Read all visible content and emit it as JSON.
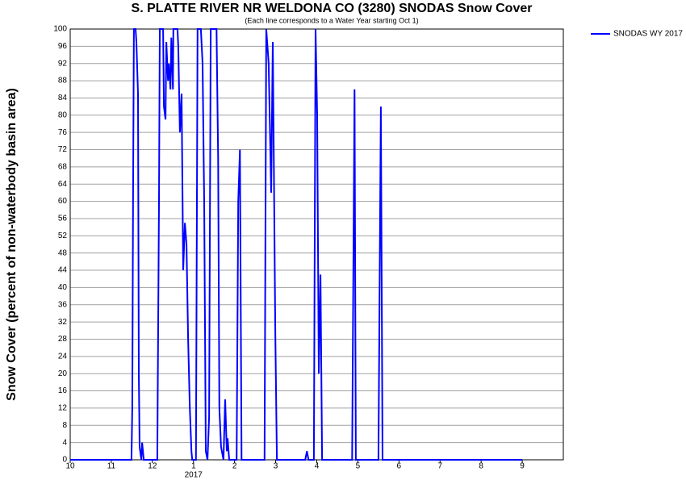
{
  "chart_data": {
    "type": "line",
    "title": "S. PLATTE RIVER NR WELDONA CO (3280) SNODAS Snow Cover",
    "subtitle": "(Each line corresponds to a Water Year starting Oct 1)",
    "y_label": "Snow Cover (percent of non-waterbody basin area)",
    "x_annotation": {
      "value": 3,
      "label": "2017"
    },
    "xlim": [
      0,
      12
    ],
    "xticks": [
      {
        "value": 0,
        "label": "10"
      },
      {
        "value": 1,
        "label": "11"
      },
      {
        "value": 2,
        "label": "12"
      },
      {
        "value": 3,
        "label": "1"
      },
      {
        "value": 4,
        "label": "2"
      },
      {
        "value": 5,
        "label": "3"
      },
      {
        "value": 6,
        "label": "4"
      },
      {
        "value": 7,
        "label": "5"
      },
      {
        "value": 8,
        "label": "6"
      },
      {
        "value": 9,
        "label": "7"
      },
      {
        "value": 10,
        "label": "8"
      },
      {
        "value": 11,
        "label": "9"
      }
    ],
    "ylim": [
      0,
      100
    ],
    "yticks": [
      0,
      4,
      8,
      12,
      16,
      20,
      24,
      28,
      32,
      36,
      40,
      44,
      48,
      52,
      56,
      60,
      64,
      68,
      72,
      76,
      80,
      84,
      88,
      92,
      96,
      100
    ],
    "grid": true,
    "legend": "outside-top-right",
    "x": [
      0,
      1.49,
      1.51,
      1.53,
      1.55,
      1.59,
      1.61,
      1.65,
      1.67,
      1.69,
      1.73,
      1.75,
      1.79,
      2.12,
      2.16,
      2.18,
      2.26,
      2.28,
      2.32,
      2.34,
      2.38,
      2.4,
      2.44,
      2.46,
      2.5,
      2.51,
      2.61,
      2.63,
      2.67,
      2.71,
      2.75,
      2.79,
      2.83,
      2.87,
      2.91,
      2.95,
      2.97,
      3.06,
      3.1,
      3.18,
      3.22,
      3.26,
      3.3,
      3.34,
      3.38,
      3.42,
      3.56,
      3.6,
      3.63,
      3.67,
      3.73,
      3.77,
      3.81,
      3.83,
      3.87,
      4.05,
      4.09,
      4.13,
      4.17,
      4.73,
      4.77,
      4.83,
      4.89,
      4.93,
      4.99,
      5.03,
      5.72,
      5.76,
      5.8,
      5.93,
      5.97,
      6.01,
      6.05,
      6.09,
      6.13,
      6.86,
      6.92,
      6.95,
      7.5,
      7.56,
      7.6,
      11.0
    ],
    "series": [
      {
        "name": "SNODAS WY 2017",
        "color": "#0000ff",
        "values": [
          0,
          0,
          12,
          62,
          100,
          100,
          97,
          85,
          20,
          3,
          0,
          4,
          0,
          0,
          60,
          100,
          100,
          82,
          79,
          97,
          88,
          92,
          86,
          98,
          86,
          100,
          100,
          96,
          76,
          85,
          44,
          55,
          50,
          28,
          12,
          2,
          0,
          0,
          100,
          100,
          92,
          60,
          2,
          0,
          10,
          100,
          100,
          70,
          12,
          3,
          0,
          14,
          2,
          5,
          0,
          0,
          60,
          72,
          0,
          0,
          100,
          92,
          62,
          97,
          30,
          0,
          0,
          2,
          0,
          0,
          100,
          80,
          20,
          43,
          0,
          0,
          86,
          0,
          0,
          82,
          0,
          0
        ]
      }
    ]
  }
}
